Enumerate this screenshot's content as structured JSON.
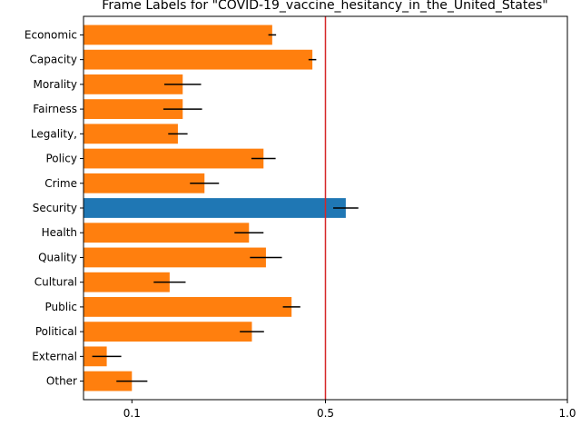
{
  "chart_data": {
    "type": "bar",
    "orientation": "horizontal",
    "title": "Frame Labels for \"COVID-19_vaccine_hesitancy_in_the_United_States\"",
    "xlabel": "",
    "ylabel": "",
    "categories": [
      "Economic",
      "Capacity",
      "Morality",
      "Fairness",
      "Legality,",
      "Policy",
      "Crime",
      "Security",
      "Health",
      "Quality",
      "Cultural",
      "Public",
      "Political",
      "External",
      "Other"
    ],
    "values": [
      0.39,
      0.473,
      0.205,
      0.205,
      0.195,
      0.372,
      0.25,
      0.542,
      0.342,
      0.377,
      0.178,
      0.43,
      0.348,
      0.048,
      0.1
    ],
    "errors": [
      0.008,
      0.008,
      0.038,
      0.04,
      0.02,
      0.025,
      0.03,
      0.026,
      0.03,
      0.033,
      0.033,
      0.018,
      0.025,
      0.03,
      0.032
    ],
    "highlight_category": "Security",
    "colors": {
      "default": "#ff7f0e",
      "highlight": "#1f77b4",
      "reference_line": "#d62728",
      "error_bar": "#000000"
    },
    "reference_line_x": 0.5,
    "xlim": [
      0,
      1.0
    ],
    "xticks": [
      0.1,
      0.5,
      1.0
    ],
    "xtick_labels": [
      "0.1",
      "0.5",
      "1.0"
    ],
    "grid": false,
    "legend": "none"
  }
}
